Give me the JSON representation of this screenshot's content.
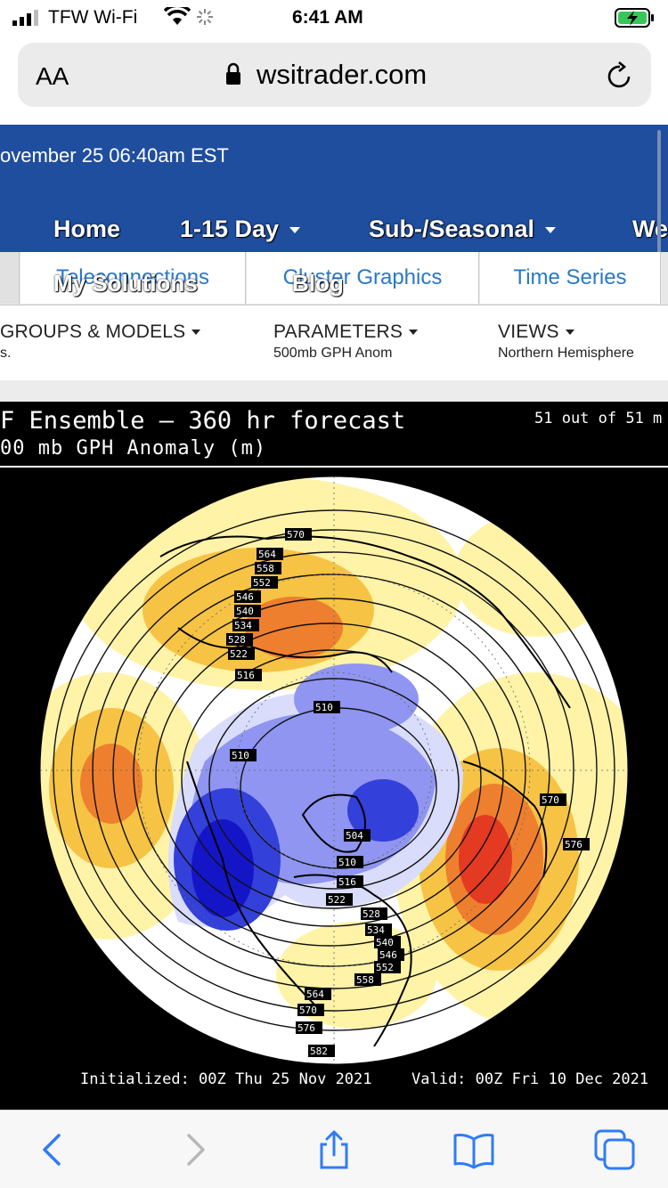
{
  "status": {
    "carrier": "TFW Wi-Fi",
    "time": "6:41 AM"
  },
  "browser": {
    "text_size_label": "AA",
    "url": "wsitrader.com"
  },
  "site": {
    "header_date": "ovember 25 06:40am EST",
    "nav": [
      {
        "label": "Home"
      },
      {
        "label": "1-15 Day"
      },
      {
        "label": "Sub-/Seasonal"
      },
      {
        "label": "We"
      }
    ],
    "overlay_menu": {
      "my_solutions": "My Solutions",
      "blog": "Blog"
    },
    "subtabs": [
      {
        "label": "Teleconnections"
      },
      {
        "label": "Cluster Graphics"
      },
      {
        "label": "Time Series"
      }
    ],
    "selectors": {
      "groups": {
        "title": "GROUPS & MODELS",
        "value": "s."
      },
      "parameters": {
        "title": "PARAMETERS",
        "value": "500mb GPH Anom"
      },
      "views": {
        "title": "VIEWS",
        "value": "Northern Hemisphere"
      }
    }
  },
  "map": {
    "title": "F Ensemble — 360 hr forecast",
    "subtitle": "00 mb GPH Anomaly (m)",
    "members": "51 out of 51 m",
    "initialized": "Initialized: 00Z Thu 25 Nov 2021",
    "valid": "Valid: 00Z Fri 10 Dec 2021",
    "contour_labels": [
      "570",
      "564",
      "558",
      "552",
      "546",
      "540",
      "534",
      "528",
      "522",
      "516",
      "510",
      "510",
      "504",
      "510",
      "516",
      "522",
      "528",
      "534",
      "540",
      "546",
      "552",
      "558",
      "564",
      "570",
      "576",
      "582",
      "570",
      "576"
    ],
    "colors": {
      "positive_light": "#fff3a8",
      "positive_mid": "#f6c344",
      "positive_strong": "#ee7f2f",
      "positive_max": "#e33a21",
      "negative_light": "#d9dcfb",
      "negative_mid": "#8f95f0",
      "negative_strong": "#3340d9",
      "negative_max": "#1515c8"
    }
  },
  "toolbar": {
    "back": "back-icon",
    "forward": "forward-icon",
    "share": "share-icon",
    "bookmarks": "book-icon",
    "tabs": "tabs-icon"
  }
}
